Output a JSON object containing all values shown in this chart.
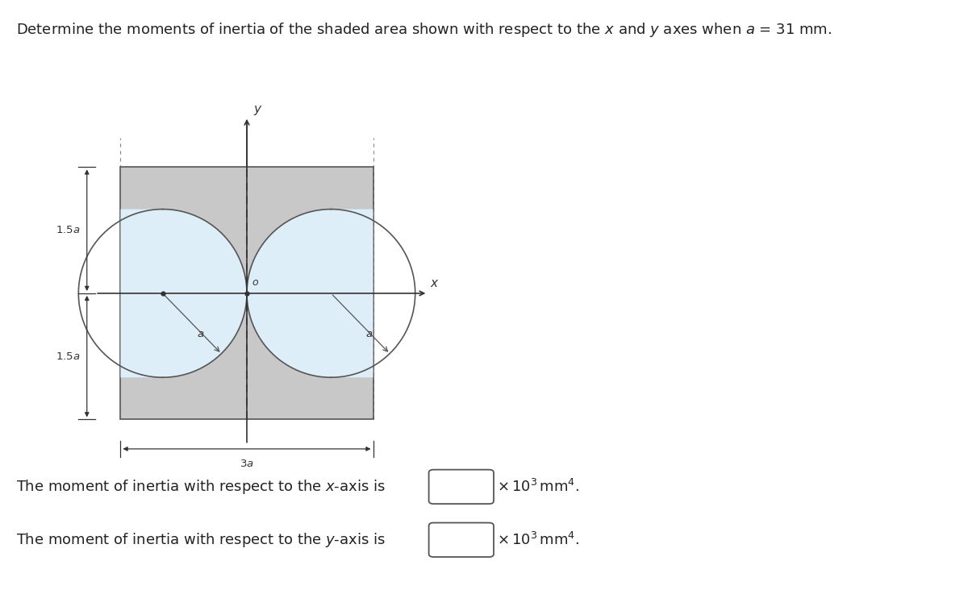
{
  "title": "Determine the moments of inertia of the shaded area shown with respect to the $x$ and $y$ axes when $a$ = 31 mm.",
  "bg_color": "#ddeef8",
  "rect_fill_color": "#c8c8c8",
  "rect_edge_color": "#555555",
  "figure_bg": "#ffffff",
  "text_color": "#222222",
  "axis_color": "#333333",
  "dim_color": "#333333",
  "circle_edge_color": "#555555",
  "text_x_axis": "The moment of inertia with respect to the $x$-axis is",
  "text_y_axis": "The moment of inertia with respect to the $y$-axis is",
  "text_units": "\\times 10^3 \\mathrm{mm}^4."
}
